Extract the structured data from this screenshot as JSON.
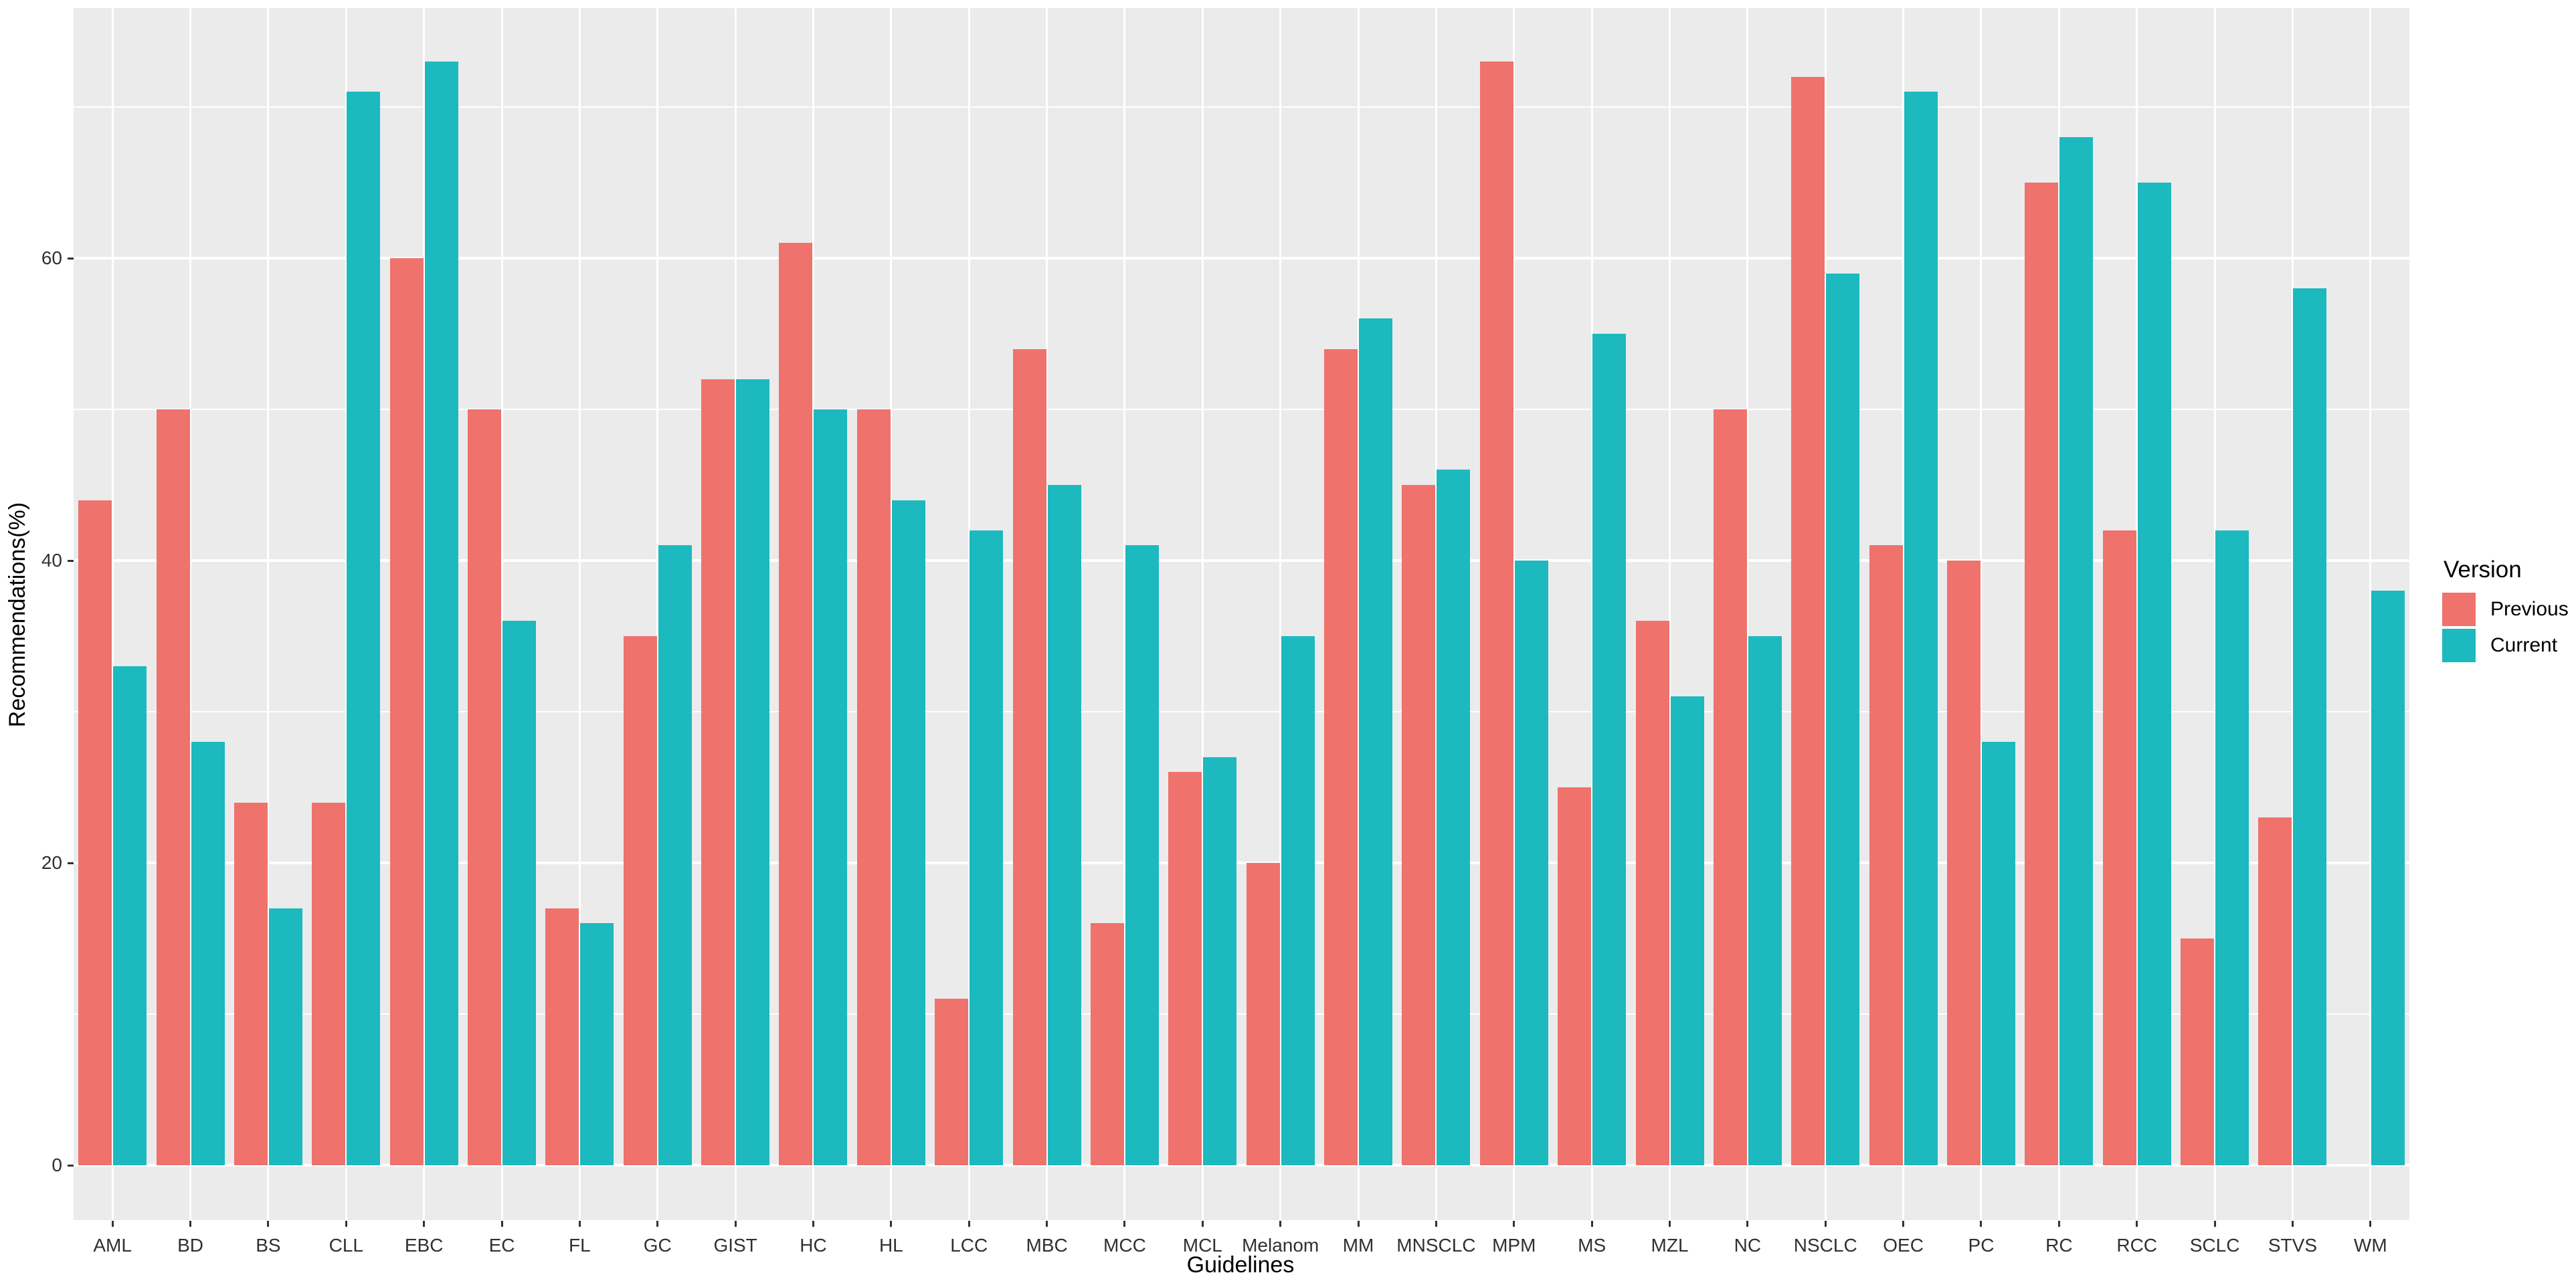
{
  "chart_data": {
    "type": "bar",
    "title": "",
    "xlabel": "Guidelines",
    "ylabel": "Recommendations(%)",
    "legend_title": "Version",
    "legend_position": "right",
    "grid": true,
    "panel_bg": "#EBEBEB",
    "grid_color": "#FFFFFF",
    "axis_text_color": "#303030",
    "ylim": [
      0,
      76.6
    ],
    "yticks": [
      0,
      20,
      40,
      60
    ],
    "yticks_minor": [
      10,
      30,
      50,
      70
    ],
    "categories": [
      "AML",
      "BD",
      "BS",
      "CLL",
      "EBC",
      "EC",
      "FL",
      "GC",
      "GIST",
      "HC",
      "HL",
      "LCC",
      "MBC",
      "MCC",
      "MCL",
      "Melanom",
      "MM",
      "MNSCLC",
      "MPM",
      "MS",
      "MZL",
      "NC",
      "NSCLC",
      "OEC",
      "PC",
      "RC",
      "RCC",
      "SCLC",
      "STVS",
      "WM"
    ],
    "series": [
      {
        "name": "Previous",
        "color": "#EF726C",
        "values": [
          44,
          50,
          24,
          24,
          60,
          50,
          17,
          35,
          52,
          61,
          50,
          11,
          54,
          16,
          26,
          20,
          54,
          45,
          73,
          25,
          36,
          50,
          72,
          41,
          40,
          65,
          42,
          15,
          23,
          null
        ]
      },
      {
        "name": "Current",
        "color": "#1CB9BF",
        "values": [
          33,
          28,
          17,
          71,
          73,
          36,
          16,
          41,
          52,
          50,
          44,
          42,
          45,
          41,
          27,
          35,
          56,
          46,
          40,
          55,
          31,
          35,
          59,
          71,
          28,
          68,
          65,
          42,
          58,
          38
        ]
      }
    ]
  }
}
